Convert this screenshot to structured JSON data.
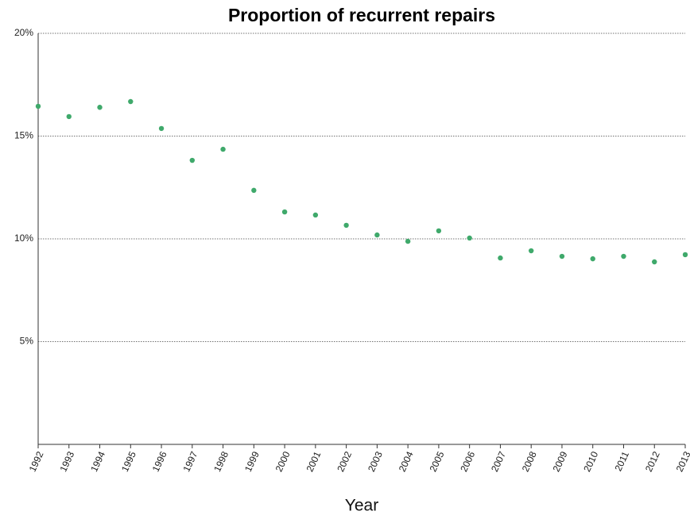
{
  "chart_data": {
    "type": "line",
    "title": "Proportion of recurrent repairs",
    "x_label": "Year",
    "x": [
      1992,
      1993,
      1994,
      1995,
      1996,
      1997,
      1998,
      1999,
      2000,
      2001,
      2002,
      2003,
      2004,
      2005,
      2006,
      2007,
      2008,
      2009,
      2010,
      2011,
      2012,
      2013
    ],
    "values": [
      16.45,
      15.95,
      16.4,
      16.68,
      15.37,
      13.82,
      14.36,
      12.36,
      11.31,
      11.16,
      10.66,
      10.19,
      9.88,
      10.39,
      10.04,
      9.07,
      9.42,
      9.15,
      9.03,
      9.15,
      8.88,
      9.23
    ],
    "color": "#3fa96b",
    "xlim": [
      1992,
      2013
    ],
    "xticks": [
      1992,
      1993,
      1994,
      1995,
      1996,
      1997,
      1998,
      1999,
      2000,
      2001,
      2002,
      2003,
      2004,
      2005,
      2006,
      2007,
      2008,
      2009,
      2010,
      2011,
      2012,
      2013
    ],
    "ylim": [
      0,
      20
    ],
    "yticks": [
      {
        "value": 5,
        "label": "5%"
      },
      {
        "value": 10,
        "label": "10%"
      },
      {
        "value": 15,
        "label": "15%"
      },
      {
        "value": 20,
        "label": "20%"
      }
    ],
    "grid": true
  }
}
